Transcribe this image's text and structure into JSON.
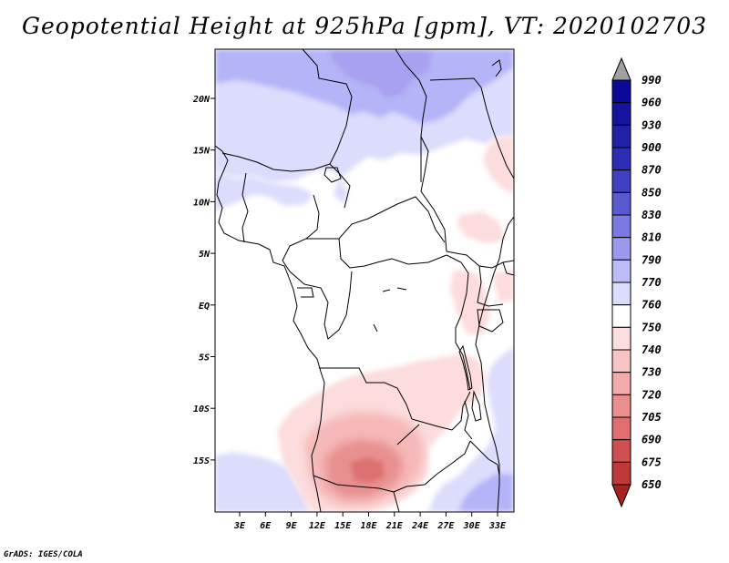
{
  "title": "Geopotential Height at 925hPa [gpm], VT: 2020102703",
  "credit": "GrADS: IGES/COLA",
  "map": {
    "lat_labels": [
      "20N",
      "15N",
      "10N",
      "5N",
      "EQ",
      "5S",
      "10S",
      "15S"
    ],
    "lon_labels": [
      "3E",
      "6E",
      "9E",
      "12E",
      "15E",
      "18E",
      "21E",
      "24E",
      "27E",
      "30E",
      "33E"
    ],
    "colors": {
      "blue_light": "#dcdcfc",
      "blue_mid": "#b4b4f8",
      "blue_dark": "#a8a0f0",
      "red_light": "#fcdcdc",
      "red_mid": "#f6b8b8",
      "red_dark": "#e89090",
      "red_core": "#dc7070"
    }
  },
  "colorbar": {
    "levels": [
      {
        "label": "990",
        "color": "#0a0a96"
      },
      {
        "label": "960",
        "color": "#14149e"
      },
      {
        "label": "930",
        "color": "#2020a8"
      },
      {
        "label": "900",
        "color": "#2c2cb4"
      },
      {
        "label": "870",
        "color": "#4040c4"
      },
      {
        "label": "850",
        "color": "#5a5ad0"
      },
      {
        "label": "830",
        "color": "#7a7ae0"
      },
      {
        "label": "810",
        "color": "#9a9aec"
      },
      {
        "label": "790",
        "color": "#bcbcf6"
      },
      {
        "label": "770",
        "color": "#dcdcfc"
      },
      {
        "label": "760",
        "color": "#ffffff"
      },
      {
        "label": "750",
        "color": "#fcdede"
      },
      {
        "label": "740",
        "color": "#f8c4c4"
      },
      {
        "label": "730",
        "color": "#f2aaaa"
      },
      {
        "label": "720",
        "color": "#ea8e8e"
      },
      {
        "label": "705",
        "color": "#e06e6e"
      },
      {
        "label": "690",
        "color": "#d05050"
      },
      {
        "label": "675",
        "color": "#c03838"
      },
      {
        "label": "650",
        "color": "#a82222"
      }
    ],
    "top_arrow_color": "#a0a0a0",
    "bottom_arrow_color": "#a82222"
  }
}
